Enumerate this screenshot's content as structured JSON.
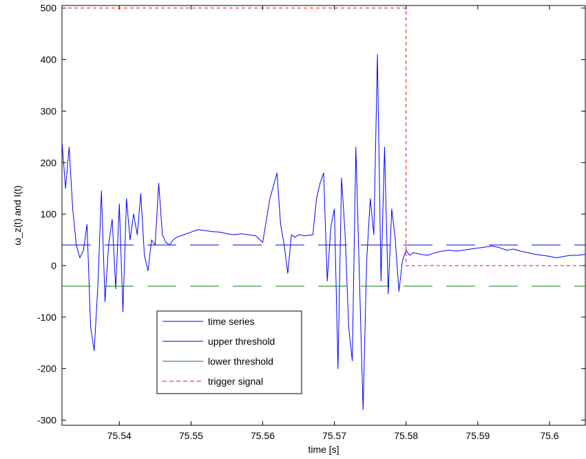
{
  "chart_data": {
    "type": "line",
    "title": "",
    "xlabel": "time [s]",
    "ylabel": "ω_z(t) and I(t)",
    "xlim": [
      75.532,
      75.605
    ],
    "ylim": [
      -310,
      505
    ],
    "grid": false,
    "legend_placement": "lower-left",
    "x_ticks": [
      75.54,
      75.55,
      75.56,
      75.57,
      75.58,
      75.59,
      75.6
    ],
    "x_tick_labels": [
      "75.54",
      "75.55",
      "75.56",
      "75.57",
      "75.58",
      "75.59",
      "75.6"
    ],
    "y_ticks": [
      -300,
      -200,
      -100,
      0,
      100,
      200,
      300,
      400,
      500
    ],
    "y_tick_labels": [
      "-300",
      "-200",
      "-100",
      "0",
      "100",
      "200",
      "300",
      "400",
      "500"
    ],
    "legend": [
      {
        "label": "time series",
        "color": "#0000cc",
        "dash": "solid"
      },
      {
        "label": "upper threshold",
        "color": "#0000cc",
        "dash": "solid"
      },
      {
        "label": "lower threshold",
        "color": "#008000",
        "dash": "solid"
      },
      {
        "label": "trigger signal",
        "color": "#ff0000",
        "dash": "dashed"
      }
    ],
    "series": [
      {
        "name": "time series",
        "color": "#0000ff",
        "x": [
          75.532,
          75.5325,
          75.533,
          75.5335,
          75.534,
          75.5345,
          75.535,
          75.5355,
          75.536,
          75.5365,
          75.537,
          75.5375,
          75.538,
          75.5385,
          75.539,
          75.5395,
          75.54,
          75.5405,
          75.541,
          75.5415,
          75.542,
          75.5425,
          75.543,
          75.5435,
          75.544,
          75.5445,
          75.545,
          75.5455,
          75.546,
          75.5465,
          75.547,
          75.5475,
          75.548,
          75.549,
          75.55,
          75.551,
          75.552,
          75.553,
          75.554,
          75.555,
          75.556,
          75.557,
          75.558,
          75.559,
          75.56,
          75.561,
          75.562,
          75.5625,
          75.563,
          75.5635,
          75.564,
          75.5645,
          75.565,
          75.566,
          75.567,
          75.5675,
          75.568,
          75.5685,
          75.569,
          75.5695,
          75.57,
          75.5705,
          75.571,
          75.5715,
          75.572,
          75.5725,
          75.573,
          75.5735,
          75.574,
          75.5745,
          75.575,
          75.5755,
          75.576,
          75.5765,
          75.577,
          75.5775,
          75.578,
          75.5785,
          75.579,
          75.5795,
          75.58,
          75.5805,
          75.581,
          75.582,
          75.583,
          75.584,
          75.585,
          75.586,
          75.587,
          75.588,
          75.589,
          75.59,
          75.591,
          75.592,
          75.593,
          75.594,
          75.595,
          75.596,
          75.597,
          75.598,
          75.599,
          75.6,
          75.601,
          75.602,
          75.603,
          75.604,
          75.605
        ],
        "y": [
          240,
          150,
          230,
          110,
          40,
          15,
          30,
          80,
          -120,
          -165,
          -40,
          145,
          -70,
          40,
          90,
          -45,
          120,
          -90,
          130,
          50,
          100,
          60,
          140,
          20,
          -10,
          50,
          40,
          160,
          60,
          45,
          40,
          50,
          55,
          60,
          65,
          70,
          68,
          66,
          65,
          62,
          60,
          62,
          60,
          58,
          45,
          130,
          180,
          80,
          40,
          -15,
          60,
          55,
          60,
          58,
          60,
          130,
          160,
          180,
          -30,
          75,
          110,
          -200,
          170,
          60,
          -120,
          -185,
          230,
          -30,
          -280,
          10,
          130,
          60,
          410,
          -30,
          230,
          -55,
          110,
          50,
          -50,
          10,
          30,
          20,
          25,
          22,
          20,
          25,
          28,
          30,
          28,
          30,
          32,
          34,
          36,
          38,
          35,
          30,
          32,
          28,
          25,
          22,
          20,
          18,
          15,
          18,
          20,
          20,
          22
        ]
      },
      {
        "name": "upper threshold",
        "color": "#0000cc",
        "x": [
          75.532,
          75.605
        ],
        "y": [
          40,
          40
        ]
      },
      {
        "name": "lower threshold",
        "color": "#008000",
        "x": [
          75.532,
          75.605
        ],
        "y": [
          -40,
          -40
        ]
      },
      {
        "name": "trigger signal",
        "color": "#ff0000",
        "x": [
          75.532,
          75.58,
          75.58,
          75.605
        ],
        "y": [
          500,
          500,
          0,
          0
        ]
      }
    ]
  }
}
